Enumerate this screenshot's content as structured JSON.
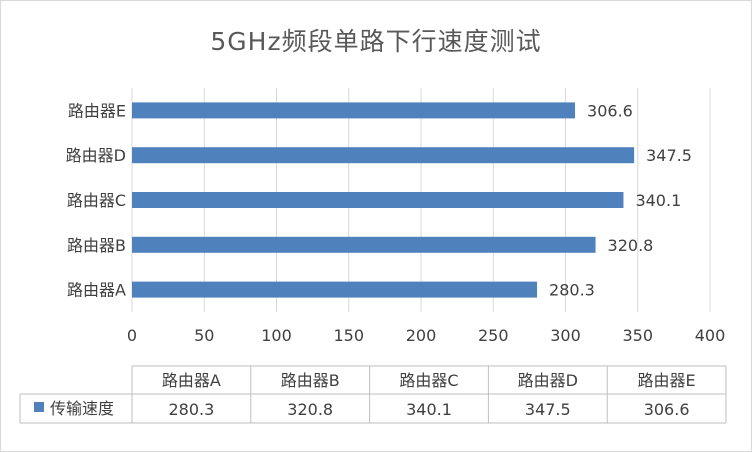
{
  "chart_data": {
    "type": "bar",
    "orientation": "horizontal",
    "title": "5GHz频段单路下行速度测试",
    "categories": [
      "路由器A",
      "路由器B",
      "路由器C",
      "路由器D",
      "路由器E"
    ],
    "series": [
      {
        "name": "传输速度",
        "values": [
          280.3,
          320.8,
          340.1,
          347.5,
          306.6
        ],
        "color": "#4f81bd"
      }
    ],
    "xlim": [
      0,
      400
    ],
    "x_ticks": [
      "0",
      "50",
      "100",
      "150",
      "200",
      "250",
      "300",
      "350",
      "400"
    ],
    "grid": true,
    "data_labels": [
      "280.3",
      "320.8",
      "340.1",
      "347.5",
      "306.6"
    ],
    "data_table": true
  }
}
